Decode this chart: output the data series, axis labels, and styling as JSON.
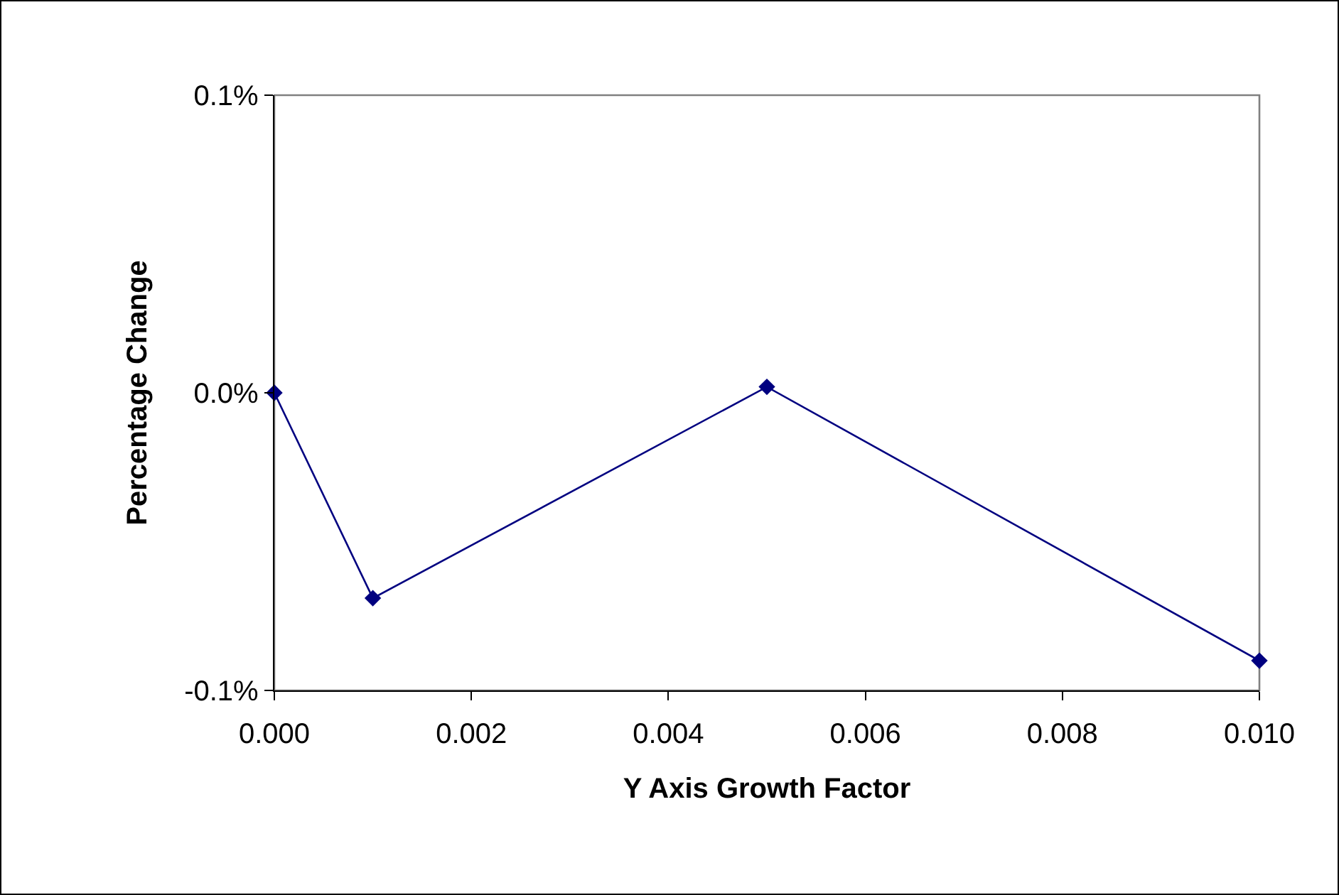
{
  "chart_data": {
    "type": "line",
    "xlabel": "Y Axis Growth Factor",
    "ylabel": "Percentage Change",
    "x": [
      0,
      0.001,
      0.005,
      0.01
    ],
    "series": [
      {
        "color": "#000080",
        "values": [
          0,
          -0.069,
          0.002,
          -0.09
        ]
      }
    ],
    "xlim": [
      0,
      0.01
    ],
    "xticks": [
      {
        "value": 0,
        "label": "0.000"
      },
      {
        "value": 0.002,
        "label": "0.002"
      },
      {
        "value": 0.004,
        "label": "0.004"
      },
      {
        "value": 0.006,
        "label": "0.006"
      },
      {
        "value": 0.008,
        "label": "0.008"
      },
      {
        "value": 0.01,
        "label": "0.010"
      }
    ],
    "ylim": [
      -0.1,
      0.1
    ],
    "yticks": [
      {
        "value": -0.1,
        "label": "-0.1%"
      },
      {
        "value": 0,
        "label": "0.0%"
      },
      {
        "value": 0.1,
        "label": "0.1%"
      }
    ],
    "grid": false,
    "marker": "diamond",
    "line_style": "solid"
  }
}
